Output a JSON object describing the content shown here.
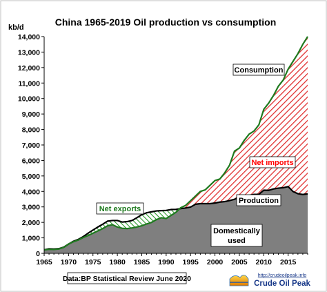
{
  "chart_data": {
    "type": "area",
    "title": "China  1965-2019 Oil production  vs consumption",
    "ylabel": "kb/d",
    "xlabel": "",
    "xlim": [
      1965,
      2019
    ],
    "ylim": [
      0,
      14000
    ],
    "x_ticks": [
      1965,
      1970,
      1975,
      1980,
      1985,
      1990,
      1995,
      2000,
      2005,
      2010,
      2015
    ],
    "y_ticks": [
      0,
      1000,
      2000,
      3000,
      4000,
      5000,
      6000,
      7000,
      8000,
      9000,
      10000,
      11000,
      12000,
      13000,
      14000
    ],
    "x_tick_labels": [
      "1965",
      "1970",
      "1975",
      "1980",
      "1985",
      "1990",
      "1995",
      "2000",
      "2005",
      "2010",
      "2015"
    ],
    "y_tick_labels": [
      "0",
      "1,000",
      "2,000",
      "3,000",
      "4,000",
      "5,000",
      "6,000",
      "7,000",
      "8,000",
      "9,000",
      "10,000",
      "11,000",
      "12,000",
      "13,000",
      "14,000"
    ],
    "grid": false,
    "years": [
      1965,
      1966,
      1967,
      1968,
      1969,
      1970,
      1971,
      1972,
      1973,
      1974,
      1975,
      1976,
      1977,
      1978,
      1979,
      1980,
      1981,
      1982,
      1983,
      1984,
      1985,
      1986,
      1987,
      1988,
      1989,
      1990,
      1991,
      1992,
      1993,
      1994,
      1995,
      1996,
      1997,
      1998,
      1999,
      2000,
      2001,
      2002,
      2003,
      2004,
      2005,
      2006,
      2007,
      2008,
      2009,
      2010,
      2011,
      2012,
      2013,
      2014,
      2015,
      2016,
      2017,
      2018,
      2019
    ],
    "series": [
      {
        "name": "Production",
        "color": "#000000",
        "values": [
          230,
          290,
          280,
          300,
          400,
          600,
          780,
          900,
          1080,
          1300,
          1500,
          1700,
          1880,
          2080,
          2120,
          2120,
          2020,
          2050,
          2120,
          2300,
          2500,
          2620,
          2680,
          2740,
          2760,
          2770,
          2830,
          2840,
          2890,
          2930,
          2990,
          3170,
          3210,
          3210,
          3210,
          3250,
          3310,
          3340,
          3410,
          3490,
          3640,
          3710,
          3740,
          3810,
          3810,
          4080,
          4070,
          4160,
          4210,
          4240,
          4310,
          3990,
          3850,
          3800,
          3840
        ]
      },
      {
        "name": "Consumption",
        "color": "#1f7a1f",
        "values": [
          220,
          260,
          250,
          280,
          380,
          600,
          750,
          860,
          1020,
          1150,
          1300,
          1450,
          1600,
          1780,
          1850,
          1700,
          1620,
          1600,
          1640,
          1700,
          1780,
          1900,
          2000,
          2180,
          2300,
          2250,
          2450,
          2650,
          2950,
          3100,
          3400,
          3700,
          4000,
          4100,
          4400,
          4700,
          4800,
          5200,
          5700,
          6600,
          6800,
          7300,
          7700,
          7900,
          8300,
          9300,
          9700,
          10200,
          10800,
          11200,
          11900,
          12400,
          12900,
          13500,
          14000
        ]
      }
    ],
    "annotations": [
      {
        "text": "Net exports",
        "color": "#1f7a1f"
      },
      {
        "text": "Net imports",
        "color": "#ff0000"
      },
      {
        "text": "Consumption",
        "color": "#000000"
      },
      {
        "text": "Production",
        "color": "#000000"
      },
      {
        "text": "Domestically used",
        "color": "#000000"
      },
      {
        "text": "Data:BP Statistical Review June 2020",
        "color": "#000000"
      }
    ],
    "logo": {
      "url_text": "http://crudeoilpeak.info",
      "name_text": "Crude Oil Peak"
    },
    "colors": {
      "domestic_fill": "#7f7f7f",
      "net_imports_hatch": "#e03030",
      "net_exports_hatch": "#2a9a2a",
      "consumption_line": "#1f7a1f",
      "production_line": "#000000"
    }
  }
}
